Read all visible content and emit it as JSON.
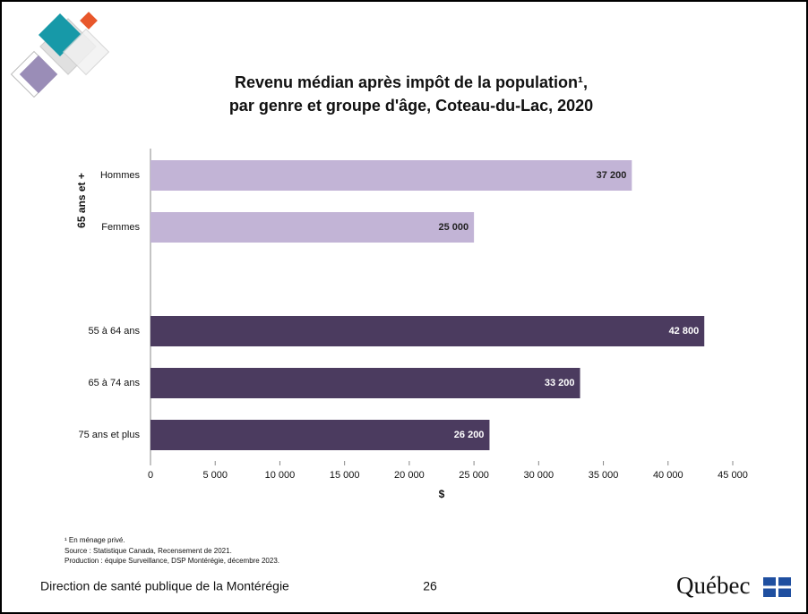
{
  "chart_data": {
    "type": "bar",
    "orientation": "horizontal",
    "title_lines": [
      "Revenu médian après impôt de la population¹,",
      "par genre et groupe d'âge, Coteau-du-Lac, 2020"
    ],
    "group_label": "65 ans et +",
    "categories": [
      "Hommes",
      "Femmes",
      null,
      "55 à 64 ans",
      "65 à 74 ans",
      "75 ans et plus"
    ],
    "values": [
      37200,
      25000,
      null,
      42800,
      33200,
      26200
    ],
    "value_labels": [
      "37 200",
      "25 000",
      null,
      "42 800",
      "33 200",
      "26 200"
    ],
    "colors": [
      "#c2b4d6",
      "#c2b4d6",
      null,
      "#4b3b5f",
      "#4b3b5f",
      "#4b3b5f"
    ],
    "xlabel": "$",
    "xlim": [
      0,
      45000
    ],
    "xticks": [
      0,
      {
        "value": 5000,
        "label": "5 000"
      },
      {
        "value": 10000,
        "label": "10 000"
      },
      {
        "value": 15000,
        "label": "15 000"
      },
      {
        "value": 20000,
        "label": "20 000"
      },
      {
        "value": 25000,
        "label": "25 000"
      },
      {
        "value": 30000,
        "label": "30 000"
      },
      {
        "value": 35000,
        "label": "35 000"
      },
      {
        "value": 40000,
        "label": "40 000"
      },
      {
        "value": 45000,
        "label": "45 000"
      }
    ]
  },
  "footnotes": [
    "¹ En ménage privé.",
    "Source : Statistique Canada, Recensement de 2021.",
    "Production : équipe Surveillance, DSP Montérégie, décembre 2023."
  ],
  "footer": {
    "organization": "Direction de santé publique de la Montérégie",
    "page": "26",
    "brand": "Québec"
  }
}
